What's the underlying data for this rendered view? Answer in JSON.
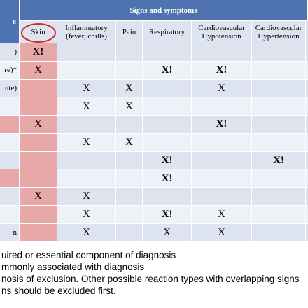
{
  "header": {
    "corner": "e",
    "group": "Signs and symptoms",
    "columns": [
      "Skin",
      "Inflammatory (fever, chills)",
      "Pain",
      "Respiratory",
      "Cardiovascular Hypotension",
      "Cardiovascular Hypertension"
    ]
  },
  "rows": [
    {
      "label": ")",
      "cells": [
        "X!",
        null,
        null,
        null,
        null,
        null
      ]
    },
    {
      "label": "re)*",
      "cells": [
        "X",
        null,
        null,
        "X!",
        "X!",
        null
      ]
    },
    {
      "label": "ute)",
      "cells": [
        null,
        "X",
        "X",
        null,
        "X",
        null
      ]
    },
    {
      "label": null,
      "cells": [
        null,
        "X",
        "X",
        null,
        null,
        null
      ]
    },
    {
      "label": null,
      "cells": [
        "X",
        null,
        null,
        null,
        "X!",
        null
      ]
    },
    {
      "label": null,
      "cells": [
        null,
        "X",
        "X",
        null,
        null,
        null
      ]
    },
    {
      "label": null,
      "cells": [
        null,
        null,
        null,
        "X!",
        null,
        "X!"
      ]
    },
    {
      "label": null,
      "cells": [
        null,
        null,
        null,
        "X!",
        null,
        null
      ]
    },
    {
      "label": null,
      "cells": [
        "X",
        "X",
        null,
        null,
        null,
        null
      ]
    },
    {
      "label": null,
      "cells": [
        null,
        "X",
        null,
        "X!",
        "X",
        null
      ]
    },
    {
      "label": "n",
      "cells": [
        null,
        "X",
        null,
        "X",
        "X",
        null
      ]
    }
  ],
  "footnotes": [
    "uired or essential component of diagnosis",
    "mmonly associated with diagnosis",
    "nosis of exclusion.  Other possible reaction types with overlapping signs",
    "ns should be excluded first."
  ]
}
